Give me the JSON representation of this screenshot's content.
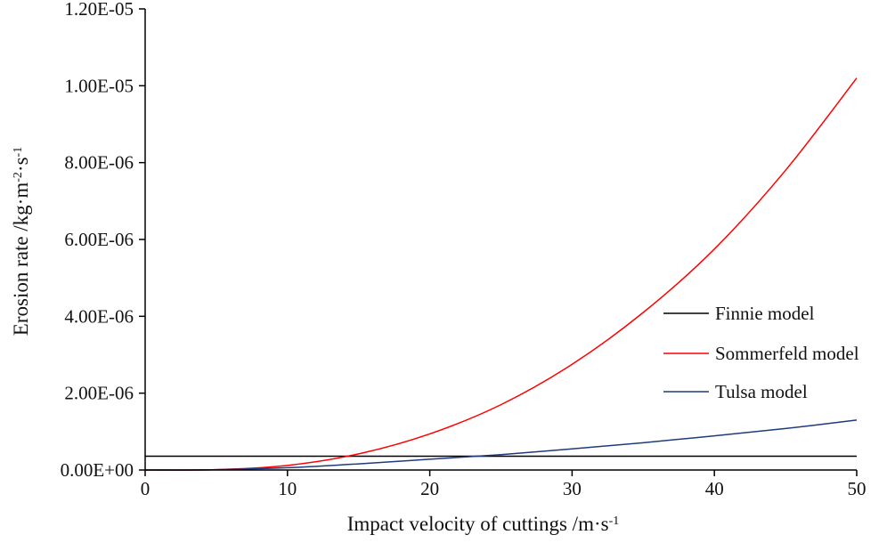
{
  "chart_data": {
    "type": "line",
    "title": "",
    "xlabel": "Impact velocity of cuttings /m·s",
    "xlabel_sup": "-1",
    "ylabel": {
      "parts": [
        {
          "text": "Erosion rate /kg·m",
          "sup": false
        },
        {
          "text": "-2",
          "sup": true
        },
        {
          "text": "·s",
          "sup": false
        },
        {
          "text": "-1",
          "sup": true
        }
      ]
    },
    "xlim": [
      0,
      50
    ],
    "ylim": [
      0,
      1.2e-05
    ],
    "x_ticks": [
      {
        "value": 0,
        "label": "0"
      },
      {
        "value": 10,
        "label": "10"
      },
      {
        "value": 20,
        "label": "20"
      },
      {
        "value": 30,
        "label": "30"
      },
      {
        "value": 40,
        "label": "40"
      },
      {
        "value": 50,
        "label": "50"
      }
    ],
    "y_ticks": [
      {
        "value": 0,
        "label": "0.00E+00"
      },
      {
        "value": 2e-06,
        "label": "2.00E-06"
      },
      {
        "value": 4e-06,
        "label": "4.00E-06"
      },
      {
        "value": 6e-06,
        "label": "6.00E-06"
      },
      {
        "value": 8e-06,
        "label": "8.00E-06"
      },
      {
        "value": 1e-05,
        "label": "1.00E-05"
      },
      {
        "value": 1.2e-05,
        "label": "1.20E-05"
      }
    ],
    "grid": false,
    "legend_position": "right",
    "series": [
      {
        "name": "Finnie model",
        "color": "#000000",
        "x": [
          0,
          5,
          10,
          15,
          20,
          25,
          30,
          35,
          40,
          45,
          50
        ],
        "y": [
          3.6e-07,
          3.6e-07,
          3.6e-07,
          3.6e-07,
          3.6e-07,
          3.6e-07,
          3.6e-07,
          3.6e-07,
          3.6e-07,
          3.6e-07,
          3.6e-07
        ]
      },
      {
        "name": "Sommerfeld model",
        "color": "#ff0000",
        "x": [
          0,
          5,
          10,
          15,
          20,
          25,
          30,
          35,
          40,
          45,
          50
        ],
        "y": [
          0,
          1e-08,
          1.2e-07,
          4.2e-07,
          9.4e-07,
          1.7e-06,
          2.75e-06,
          4.1e-06,
          5.75e-06,
          7.8e-06,
          1.02e-05
        ]
      },
      {
        "name": "Tulsa model",
        "color": "#1f3b7a",
        "x": [
          0,
          5,
          10,
          15,
          20,
          25,
          30,
          35,
          40,
          45,
          50
        ],
        "y": [
          0,
          1e-08,
          6e-08,
          1.6e-07,
          2.8e-07,
          4e-07,
          5.5e-07,
          7.1e-07,
          8.9e-07,
          1.08e-06,
          1.3e-06
        ]
      }
    ]
  }
}
